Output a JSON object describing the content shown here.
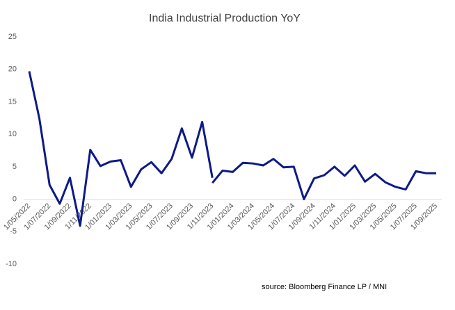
{
  "chart_data": {
    "type": "line",
    "title": "India Industrial Production YoY",
    "source": "source:  Bloomberg Finance LP / MNI",
    "categories": [
      "1/05/2022",
      null,
      "1/07/2022",
      null,
      "1/09/2022",
      null,
      "1/11/2022",
      null,
      "1/01/2023",
      null,
      "1/03/2023",
      null,
      "1/05/2023",
      null,
      "1/07/2023",
      null,
      "1/09/2023",
      null,
      "1/11/2023",
      null,
      "1/01/2024",
      null,
      "1/03/2024",
      null,
      "1/05/2024",
      null,
      "1/07/2024",
      null,
      "1/09/2024",
      null,
      "1/11/2024",
      null,
      "1/01/2025",
      null,
      "1/03/2025",
      null,
      "1/05/2025",
      null,
      "1/07/2025",
      null,
      "1/09/2025"
    ],
    "series": [
      {
        "color": "#0d1a87",
        "values": [
          19.7,
          12.4,
          2.2,
          -0.7,
          3.3,
          -4.1,
          7.6,
          5.1,
          5.8,
          6.0,
          1.9,
          4.6,
          5.7,
          4.0,
          6.2,
          10.9,
          6.4,
          11.9,
          3.3,
          null,
          null,
          null,
          null,
          null,
          null,
          null,
          null,
          null,
          null,
          null,
          null,
          null,
          null,
          null,
          null,
          null,
          null,
          null,
          null,
          null,
          null
        ]
      },
      {
        "color": "#0d1a87",
        "values": [
          null,
          null,
          null,
          null,
          null,
          null,
          null,
          null,
          null,
          null,
          null,
          null,
          null,
          null,
          null,
          null,
          null,
          null,
          2.5,
          4.4,
          4.2,
          5.6,
          5.5,
          5.2,
          6.2,
          4.9,
          5.0,
          0.0,
          3.2,
          3.7,
          5.0,
          3.6,
          5.2,
          2.7,
          3.9,
          2.6,
          1.9,
          1.5,
          4.3,
          4.0,
          4.0
        ]
      }
    ],
    "ylim": [
      -10,
      25
    ],
    "yticks": [
      -10,
      -5,
      0,
      5,
      10,
      15,
      20,
      25
    ]
  }
}
